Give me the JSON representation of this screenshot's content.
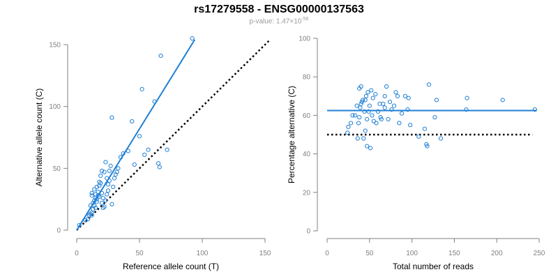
{
  "figure": {
    "title": "rs17279558 - ENSG00000137563",
    "pvalue_prefix": "p-value: 1.47×10",
    "pvalue_exponent": "-56"
  },
  "colors": {
    "points": "#1f7fd4",
    "fit_line": "#1f7fd4",
    "reference_line": "#000000",
    "axis": "#808080"
  },
  "chart_data": [
    {
      "type": "scatter",
      "title": "",
      "xlabel": "Reference allele count (T)",
      "ylabel": "Alternative allele count (C)",
      "xlim": [
        0,
        150
      ],
      "ylim": [
        0,
        150
      ],
      "xticks": [
        0,
        50,
        100,
        150
      ],
      "yticks": [
        0,
        50,
        100,
        150
      ],
      "grid": false,
      "series": [
        {
          "points": [
            [
              2,
              4
            ],
            [
              7,
              8
            ],
            [
              9,
              9
            ],
            [
              10,
              12
            ],
            [
              11,
              13
            ],
            [
              12,
              14
            ],
            [
              12,
              12
            ],
            [
              13,
              17
            ],
            [
              13,
              22
            ],
            [
              14,
              20
            ],
            [
              14,
              24
            ],
            [
              15,
              26
            ],
            [
              15,
              29
            ],
            [
              15,
              18
            ],
            [
              16,
              23
            ],
            [
              16,
              25
            ],
            [
              17,
              28
            ],
            [
              17,
              31
            ],
            [
              18,
              27
            ],
            [
              18,
              36
            ],
            [
              19,
              38
            ],
            [
              20,
              22
            ],
            [
              20,
              30
            ],
            [
              21,
              26
            ],
            [
              21,
              18
            ],
            [
              22,
              19
            ],
            [
              23,
              24
            ],
            [
              24,
              29
            ],
            [
              25,
              32
            ],
            [
              25,
              37
            ],
            [
              26,
              40
            ],
            [
              26,
              48
            ],
            [
              27,
              52
            ],
            [
              28,
              21
            ],
            [
              29,
              35
            ],
            [
              30,
              42
            ],
            [
              31,
              45
            ],
            [
              32,
              47
            ],
            [
              33,
              50
            ],
            [
              35,
              59
            ],
            [
              37,
              62
            ],
            [
              41,
              64
            ],
            [
              44,
              88
            ],
            [
              46,
              53
            ],
            [
              50,
              76
            ],
            [
              52,
              114
            ],
            [
              54,
              61
            ],
            [
              57,
              65
            ],
            [
              62,
              104
            ],
            [
              65,
              54
            ],
            [
              66,
              51
            ],
            [
              67,
              141
            ],
            [
              72,
              65
            ],
            [
              92,
              155
            ],
            [
              28,
              91
            ],
            [
              12,
              28
            ],
            [
              14,
              33
            ],
            [
              16,
              35
            ],
            [
              19,
              44
            ],
            [
              22,
              47
            ],
            [
              24,
              42
            ],
            [
              12,
              30
            ],
            [
              18,
              39
            ],
            [
              20,
              48
            ],
            [
              11,
              20
            ],
            [
              23,
              55
            ]
          ]
        }
      ],
      "fit_line": {
        "x": [
          0,
          94
        ],
        "y": [
          0,
          154
        ]
      },
      "reference_line": {
        "x": [
          0,
          153
        ],
        "y": [
          0,
          153
        ]
      }
    },
    {
      "type": "scatter",
      "title": "",
      "xlabel": "Total number of reads",
      "ylabel": "Percentage alternative (C)",
      "xlim": [
        0,
        250
      ],
      "ylim": [
        0,
        100
      ],
      "xticks": [
        0,
        50,
        100,
        150,
        200,
        250
      ],
      "yticks": [
        0,
        20,
        40,
        60,
        80,
        100
      ],
      "grid": false,
      "series": [
        {
          "points": [
            [
              24,
              51
            ],
            [
              25,
              54
            ],
            [
              28,
              56
            ],
            [
              30,
              60
            ],
            [
              33,
              60
            ],
            [
              35,
              65
            ],
            [
              36,
              48
            ],
            [
              37,
              56
            ],
            [
              38,
              59
            ],
            [
              38,
              74
            ],
            [
              39,
              64
            ],
            [
              40,
              66
            ],
            [
              40,
              75
            ],
            [
              41,
              67
            ],
            [
              42,
              68
            ],
            [
              43,
              48
            ],
            [
              44,
              62
            ],
            [
              45,
              68
            ],
            [
              45,
              52
            ],
            [
              46,
              70
            ],
            [
              47,
              58
            ],
            [
              47,
              44
            ],
            [
              48,
              72
            ],
            [
              49,
              62
            ],
            [
              50,
              65
            ],
            [
              51,
              43
            ],
            [
              52,
              73
            ],
            [
              53,
              60
            ],
            [
              54,
              69
            ],
            [
              55,
              57
            ],
            [
              57,
              71
            ],
            [
              58,
              56
            ],
            [
              60,
              62
            ],
            [
              62,
              66
            ],
            [
              63,
              59
            ],
            [
              64,
              58
            ],
            [
              66,
              66
            ],
            [
              68,
              64
            ],
            [
              68,
              70
            ],
            [
              70,
              75
            ],
            [
              72,
              58
            ],
            [
              74,
              67
            ],
            [
              76,
              63
            ],
            [
              79,
              65
            ],
            [
              81,
              72
            ],
            [
              83,
              70
            ],
            [
              85,
              56
            ],
            [
              88,
              61
            ],
            [
              92,
              70
            ],
            [
              95,
              63
            ],
            [
              96,
              69
            ],
            [
              98,
              55
            ],
            [
              108,
              49
            ],
            [
              115,
              53
            ],
            [
              117,
              45
            ],
            [
              118,
              44
            ],
            [
              120,
              76
            ],
            [
              127,
              59
            ],
            [
              129,
              68
            ],
            [
              134,
              48
            ],
            [
              164,
              63
            ],
            [
              165,
              69
            ],
            [
              207,
              68
            ],
            [
              245,
              63
            ]
          ]
        }
      ],
      "fit_line": {
        "x": [
          0,
          247
        ],
        "y": [
          62.5,
          62.5
        ]
      },
      "reference_line": {
        "x": [
          0,
          242
        ],
        "y": [
          50,
          50
        ]
      }
    }
  ]
}
